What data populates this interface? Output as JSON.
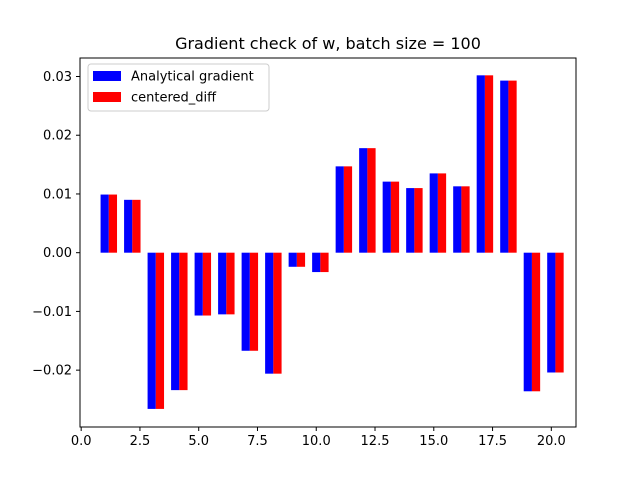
{
  "chart_data": {
    "type": "bar",
    "title": "Gradient check of w, batch size = 100",
    "xlabel": "",
    "ylabel": "",
    "xlim": [
      -0.05,
      21.05
    ],
    "ylim": [
      -0.02968,
      0.03315
    ],
    "xticks": [
      0.0,
      2.5,
      5.0,
      7.5,
      10.0,
      12.5,
      15.0,
      17.5,
      20.0
    ],
    "xtick_labels": [
      "0.0",
      "2.5",
      "5.0",
      "7.5",
      "10.0",
      "12.5",
      "15.0",
      "17.5",
      "20.0"
    ],
    "yticks": [
      -0.02,
      -0.01,
      0.0,
      0.01,
      0.02,
      0.03
    ],
    "ytick_labels": [
      "−0.02",
      "−0.01",
      "0.00",
      "0.01",
      "0.02",
      "0.03"
    ],
    "bar_width": 0.35,
    "grid": false,
    "legend_position": "top-left",
    "x": [
      1,
      2,
      3,
      4,
      5,
      6,
      7,
      8,
      9,
      10,
      11,
      12,
      13,
      14,
      15,
      16,
      17,
      18,
      19,
      20
    ],
    "series": [
      {
        "name": "Analytical gradient",
        "color": "#0000ff",
        "offset": 0,
        "values": [
          0.0099,
          0.009,
          -0.0266,
          -0.0234,
          -0.0107,
          -0.0105,
          -0.0167,
          -0.0206,
          -0.0024,
          -0.0033,
          0.0147,
          0.0178,
          0.0121,
          0.011,
          0.0135,
          0.0113,
          0.0302,
          0.0293,
          -0.0236,
          -0.0204
        ]
      },
      {
        "name": "centered_diff",
        "color": "#ff0000",
        "offset": 0.35,
        "values": [
          0.0099,
          0.009,
          -0.0266,
          -0.0234,
          -0.0107,
          -0.0105,
          -0.0167,
          -0.0206,
          -0.0024,
          -0.0033,
          0.0147,
          0.0178,
          0.0121,
          0.011,
          0.0135,
          0.0113,
          0.0302,
          0.0293,
          -0.0236,
          -0.0204
        ]
      }
    ]
  }
}
